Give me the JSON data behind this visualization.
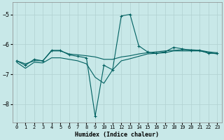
{
  "xlabel": "Humidex (Indice chaleur)",
  "background_color": "#c8e8e8",
  "grid_color": "#b0d0d0",
  "line_color": "#006060",
  "xlim": [
    -0.5,
    23.5
  ],
  "ylim": [
    -8.6,
    -4.6
  ],
  "yticks": [
    -8,
    -7,
    -6,
    -5
  ],
  "xticks": [
    0,
    1,
    2,
    3,
    4,
    5,
    6,
    7,
    8,
    9,
    10,
    11,
    12,
    13,
    14,
    15,
    16,
    17,
    18,
    19,
    20,
    21,
    22,
    23
  ],
  "line_peak_x": [
    0,
    1,
    2,
    3,
    4,
    5,
    6,
    7,
    8,
    9,
    10,
    11,
    12,
    13,
    14,
    15,
    16,
    17,
    18,
    19,
    20,
    21,
    22,
    23
  ],
  "line_peak_y": [
    -6.55,
    -6.7,
    -6.5,
    -6.55,
    -6.2,
    -6.2,
    -6.35,
    -6.4,
    -6.45,
    -8.4,
    -6.7,
    -6.85,
    -5.05,
    -5.0,
    -6.05,
    -6.25,
    -6.3,
    -6.25,
    -6.1,
    -6.15,
    -6.2,
    -6.2,
    -6.3,
    -6.3
  ],
  "line_upper_x": [
    0,
    1,
    2,
    3,
    4,
    5,
    6,
    7,
    8,
    9,
    10,
    11,
    12,
    13,
    14,
    15,
    16,
    17,
    18,
    19,
    20,
    21,
    22,
    23
  ],
  "line_upper_y": [
    -6.55,
    -6.65,
    -6.55,
    -6.55,
    -6.22,
    -6.22,
    -6.32,
    -6.35,
    -6.38,
    -6.42,
    -6.5,
    -6.5,
    -6.42,
    -6.38,
    -6.32,
    -6.28,
    -6.25,
    -6.22,
    -6.2,
    -6.18,
    -6.18,
    -6.2,
    -6.25,
    -6.28
  ],
  "line_lower_x": [
    0,
    1,
    2,
    3,
    4,
    5,
    6,
    7,
    8,
    9,
    10,
    11,
    12,
    13,
    14,
    15,
    16,
    17,
    18,
    19,
    20,
    21,
    22,
    23
  ],
  "line_lower_y": [
    -6.6,
    -6.8,
    -6.6,
    -6.62,
    -6.45,
    -6.45,
    -6.5,
    -6.55,
    -6.65,
    -7.1,
    -7.3,
    -6.85,
    -6.55,
    -6.48,
    -6.4,
    -6.32,
    -6.3,
    -6.28,
    -6.22,
    -6.22,
    -6.22,
    -6.22,
    -6.28,
    -6.32
  ]
}
